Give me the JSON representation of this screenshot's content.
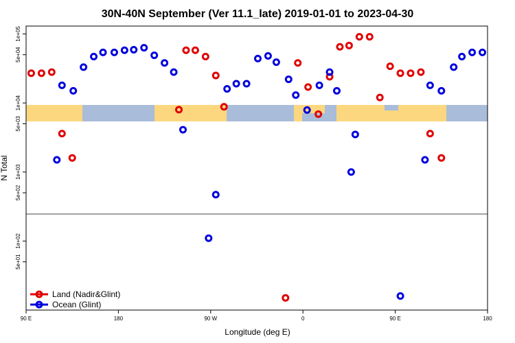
{
  "chart_data": {
    "type": "scatter",
    "title": "30N-40N September (Ver 11.1_late)   2019-01-01 to 2023-04-30",
    "x_label": "Longitude (deg E)",
    "y_label": "N Total",
    "log_y": true,
    "xlim": [
      90,
      540
    ],
    "ylim": [
      10,
      130000
    ],
    "xticks": [
      {
        "value": 90,
        "label": "90 E"
      },
      180,
      {
        "value": 270,
        "label": "90 W"
      },
      {
        "value": 360,
        "label": "0"
      },
      {
        "value": 450,
        "label": "90 E"
      },
      {
        "value": 540,
        "label": "180"
      }
    ],
    "yticks": [
      {
        "value": 50,
        "label": "5e+01"
      },
      {
        "value": 100,
        "label": "1e+02"
      },
      {
        "value": 500,
        "label": "5e+02"
      },
      {
        "value": 1000,
        "label": "1e+03"
      },
      {
        "value": 5000,
        "label": "5e+03"
      },
      {
        "value": 10000,
        "label": "1e+04"
      },
      {
        "value": 50000,
        "label": "5e+04"
      },
      {
        "value": 100000,
        "label": "1e+05"
      }
    ],
    "legend": "bottom-left",
    "series": [
      {
        "name": "Land (Nadir&Glint)",
        "color": "#e00000",
        "x": [
          95,
          105,
          115,
          125,
          135,
          239,
          246,
          255,
          265,
          275,
          283,
          343,
          355,
          365,
          375,
          386,
          396,
          405,
          415,
          425,
          435,
          445,
          455,
          465,
          475,
          484,
          495
        ],
        "values": [
          27000,
          27000,
          28000,
          3600,
          1600,
          8000,
          58000,
          58000,
          47000,
          25000,
          8800,
          15,
          38000,
          17000,
          6900,
          24000,
          65000,
          68000,
          91000,
          91000,
          12000,
          34000,
          27000,
          27000,
          28000,
          3600,
          1600
        ]
      },
      {
        "name": "Ocean (Glint)",
        "color": "#0000dd",
        "x": [
          120,
          125,
          136,
          146,
          156,
          165,
          176,
          186,
          195,
          205,
          215,
          225,
          234,
          243,
          268,
          275,
          286,
          295,
          305,
          316,
          326,
          334,
          346,
          353,
          364,
          376,
          386,
          393,
          407,
          411,
          455,
          479,
          484,
          495,
          507,
          515,
          525,
          535
        ],
        "values": [
          1500,
          18000,
          15000,
          33000,
          47000,
          54000,
          54000,
          58000,
          59000,
          63000,
          49000,
          38000,
          28000,
          4100,
          110,
          470,
          16000,
          19000,
          19000,
          44000,
          48000,
          39000,
          22000,
          13000,
          7900,
          18000,
          28000,
          15000,
          1000,
          3500,
          16,
          1500,
          18000,
          15000,
          33000,
          47000,
          54000,
          54000
        ]
      }
    ]
  }
}
